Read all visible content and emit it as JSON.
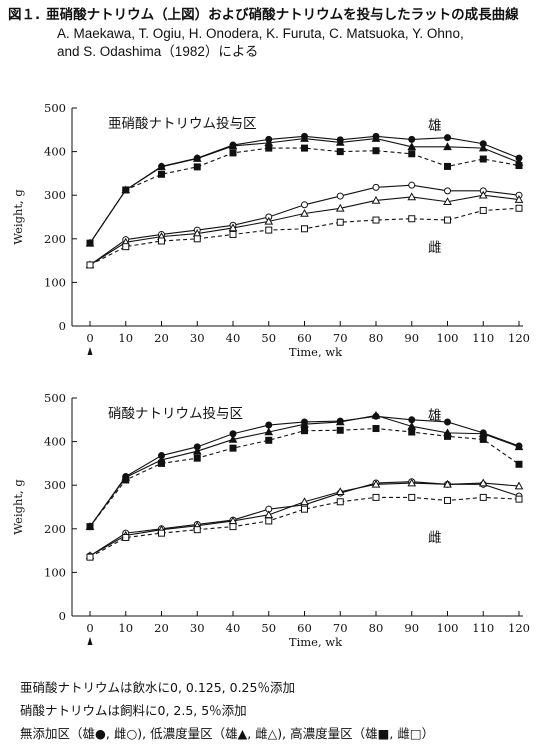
{
  "figure": {
    "number": "図１.",
    "title": "亜硝酸ナトリウム（上図）および硝酸ナトリウムを投与したラットの成長曲線",
    "authors_line1": "A. Maekawa, T. Ogiu, H. Onodera, K. Furuta, C. Matsuoka, Y. Ohno,",
    "authors_line2": "and S. Odashima（1982）による"
  },
  "footnotes": [
    "亜硝酸ナトリウムは飲水に0,  0.125,  0.25％添加",
    "硝酸ナトリウムは飼料に0,  2.5,  5％添加",
    "無添加区（雄●,  雌○),  低濃度量区（雄▲,  雌△),  高濃度量区（雄■,  雌□）"
  ],
  "chart_data": [
    {
      "type": "line",
      "title": "亜硝酸ナトリウム投与区",
      "xlabel": "Time, wk",
      "ylabel": "Weight, g",
      "x_ticks": [
        0,
        10,
        20,
        30,
        40,
        50,
        60,
        70,
        80,
        90,
        100,
        110,
        120
      ],
      "y_ticks": [
        0,
        100,
        200,
        300,
        400,
        500
      ],
      "xlim": [
        0,
        120
      ],
      "ylim": [
        0,
        500
      ],
      "male_label": "雄",
      "female_label": "雌",
      "series": [
        {
          "sex": "male",
          "group": "control",
          "marker": "circle",
          "filled": true,
          "line": "solid",
          "x": [
            0,
            10,
            20,
            30,
            40,
            50,
            60,
            70,
            80,
            90,
            100,
            110,
            120
          ],
          "values": [
            190,
            312,
            366,
            385,
            415,
            428,
            435,
            427,
            435,
            428,
            432,
            418,
            385
          ]
        },
        {
          "sex": "male",
          "group": "low",
          "marker": "triangle",
          "filled": true,
          "line": "solid",
          "x": [
            0,
            10,
            20,
            30,
            40,
            50,
            60,
            70,
            80,
            90,
            100,
            110,
            120
          ],
          "values": [
            190,
            312,
            365,
            384,
            413,
            420,
            430,
            421,
            430,
            411,
            411,
            408,
            375
          ]
        },
        {
          "sex": "male",
          "group": "high",
          "marker": "square",
          "filled": true,
          "line": "dashed",
          "x": [
            0,
            10,
            20,
            30,
            40,
            50,
            60,
            70,
            80,
            90,
            100,
            110,
            120
          ],
          "values": [
            190,
            312,
            348,
            365,
            397,
            408,
            408,
            400,
            402,
            395,
            366,
            383,
            368
          ]
        },
        {
          "sex": "female",
          "group": "control",
          "marker": "circle",
          "filled": false,
          "line": "solid",
          "x": [
            0,
            10,
            20,
            30,
            40,
            50,
            60,
            70,
            80,
            90,
            100,
            110,
            120
          ],
          "values": [
            140,
            198,
            210,
            220,
            231,
            250,
            278,
            298,
            318,
            323,
            310,
            310,
            300
          ]
        },
        {
          "sex": "female",
          "group": "low",
          "marker": "triangle",
          "filled": false,
          "line": "solid",
          "x": [
            0,
            10,
            20,
            30,
            40,
            50,
            60,
            70,
            80,
            90,
            100,
            110,
            120
          ],
          "values": [
            140,
            192,
            205,
            212,
            225,
            240,
            258,
            270,
            288,
            296,
            285,
            300,
            290
          ]
        },
        {
          "sex": "female",
          "group": "high",
          "marker": "square",
          "filled": false,
          "line": "dashed",
          "x": [
            0,
            10,
            20,
            30,
            40,
            50,
            60,
            70,
            80,
            90,
            100,
            110,
            120
          ],
          "values": [
            140,
            182,
            195,
            200,
            210,
            220,
            223,
            238,
            243,
            246,
            243,
            265,
            270
          ]
        }
      ]
    },
    {
      "type": "line",
      "title": "硝酸ナトリウム投与区",
      "xlabel": "Time, wk",
      "ylabel": "Weight, g",
      "x_ticks": [
        0,
        10,
        20,
        30,
        40,
        50,
        60,
        70,
        80,
        90,
        100,
        110,
        120
      ],
      "y_ticks": [
        0,
        100,
        200,
        300,
        400,
        500
      ],
      "xlim": [
        0,
        120
      ],
      "ylim": [
        0,
        500
      ],
      "male_label": "雄",
      "female_label": "雌",
      "series": [
        {
          "sex": "male",
          "group": "control",
          "marker": "circle",
          "filled": true,
          "line": "solid",
          "x": [
            0,
            10,
            20,
            30,
            40,
            50,
            60,
            70,
            80,
            90,
            100,
            110,
            120
          ],
          "values": [
            205,
            320,
            368,
            388,
            418,
            438,
            445,
            447,
            458,
            450,
            445,
            420,
            390
          ]
        },
        {
          "sex": "male",
          "group": "low",
          "marker": "triangle",
          "filled": true,
          "line": "solid",
          "x": [
            0,
            10,
            20,
            30,
            40,
            50,
            60,
            70,
            80,
            90,
            100,
            110,
            120
          ],
          "values": [
            205,
            318,
            358,
            378,
            405,
            422,
            440,
            445,
            460,
            435,
            420,
            418,
            388
          ]
        },
        {
          "sex": "male",
          "group": "high",
          "marker": "square",
          "filled": true,
          "line": "dashed",
          "x": [
            0,
            10,
            20,
            30,
            40,
            50,
            60,
            70,
            80,
            90,
            100,
            110,
            120
          ],
          "values": [
            205,
            312,
            350,
            362,
            385,
            403,
            425,
            426,
            430,
            422,
            412,
            405,
            348
          ]
        },
        {
          "sex": "female",
          "group": "control",
          "marker": "circle",
          "filled": false,
          "line": "solid",
          "x": [
            0,
            10,
            20,
            30,
            40,
            50,
            60,
            70,
            80,
            90,
            100,
            110,
            120
          ],
          "values": [
            138,
            190,
            200,
            210,
            220,
            245,
            255,
            282,
            305,
            308,
            302,
            302,
            275
          ]
        },
        {
          "sex": "female",
          "group": "low",
          "marker": "triangle",
          "filled": false,
          "line": "solid",
          "x": [
            0,
            10,
            20,
            30,
            40,
            50,
            60,
            70,
            80,
            90,
            100,
            110,
            120
          ],
          "values": [
            138,
            185,
            198,
            207,
            218,
            232,
            262,
            285,
            302,
            305,
            302,
            305,
            298
          ]
        },
        {
          "sex": "female",
          "group": "high",
          "marker": "square",
          "filled": false,
          "line": "dashed",
          "x": [
            0,
            10,
            20,
            30,
            40,
            50,
            60,
            70,
            80,
            90,
            100,
            110,
            120
          ],
          "values": [
            135,
            180,
            190,
            198,
            205,
            218,
            245,
            262,
            272,
            272,
            265,
            272,
            268
          ]
        }
      ]
    }
  ]
}
